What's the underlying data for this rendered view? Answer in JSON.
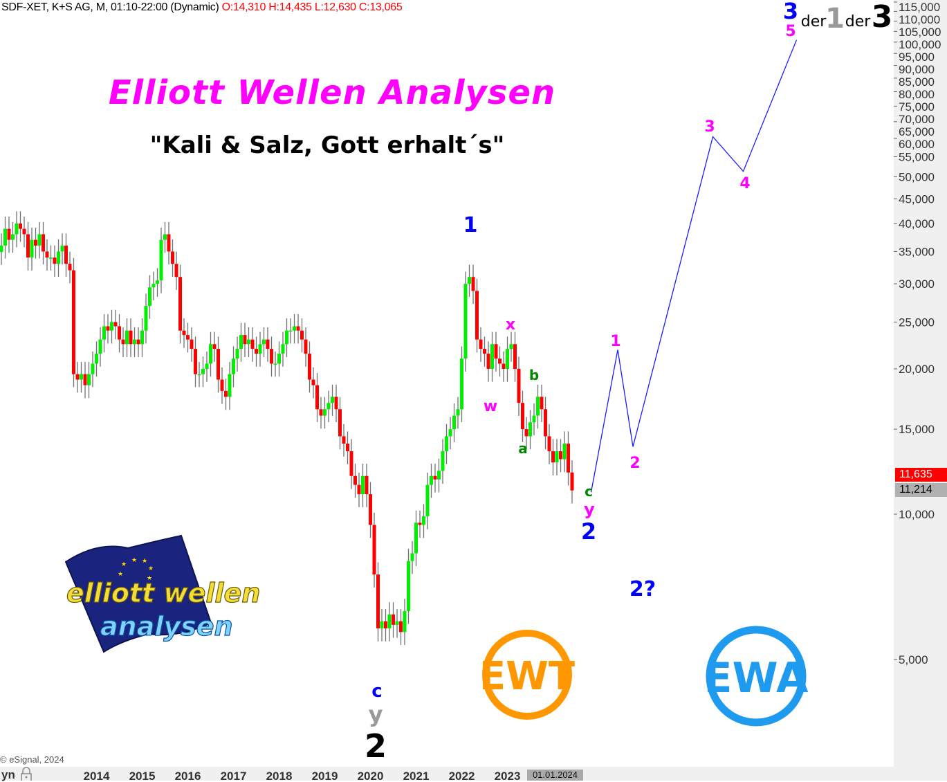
{
  "header": {
    "symbol_info": "SDF-XET, K+S AG, M, 01:10-22:00 (Dynamic)",
    "ohlc": "O:14,310 H:14,435 L:12,630 C:13,065"
  },
  "title": "Elliott Wellen Analysen",
  "subtitle": "\"Kali & Salz, Gott erhalt´s\"",
  "copyright": "© eSignal, 2024",
  "xaxis_left_label": "yn",
  "cursor_date_label": "01.01.2024",
  "price_labels": {
    "upper": "11,635",
    "current": "11,214"
  },
  "colors": {
    "up": "#00ee00",
    "down": "#ff0000",
    "wick": "#707070",
    "projection": "#1a1aff",
    "wave_blue": "#0000ff",
    "wave_magenta": "#ff00ff",
    "wave_green": "#008800"
  },
  "wave_labels": [
    {
      "text": "1",
      "color": "blue"
    },
    {
      "text": "x",
      "color": "magenta"
    },
    {
      "text": "w",
      "color": "magenta"
    },
    {
      "text": "b",
      "color": "green"
    },
    {
      "text": "a",
      "color": "green"
    },
    {
      "text": "c",
      "color": "green"
    },
    {
      "text": "y",
      "color": "magenta"
    },
    {
      "text": "2",
      "color": "blue"
    },
    {
      "text": "1",
      "color": "magenta"
    },
    {
      "text": "2",
      "color": "magenta"
    },
    {
      "text": "3",
      "color": "magenta"
    },
    {
      "text": "4",
      "color": "magenta"
    },
    {
      "text": "5",
      "color": "magenta"
    },
    {
      "text": "3",
      "color": "blue"
    },
    {
      "text": "der",
      "color": "black"
    },
    {
      "text": "1",
      "color": "gray"
    },
    {
      "text": "der",
      "color": "black"
    },
    {
      "text": "3",
      "color": "black"
    },
    {
      "text": "2?",
      "color": "blue"
    },
    {
      "text": "c",
      "color": "blue"
    },
    {
      "text": "y",
      "color": "gray"
    },
    {
      "text": "2",
      "color": "black"
    }
  ],
  "logos": {
    "ewa_main": [
      "elliott wellen",
      "analysen"
    ],
    "ewt": "EWT",
    "ewa": "EWA"
  },
  "icons": {
    "lock": "lock-icon"
  },
  "chart_data": {
    "type": "candlestick",
    "scale": "log",
    "start_month": "2011-12",
    "closes": [
      36,
      39,
      37,
      38,
      40,
      39,
      38,
      34,
      37,
      36,
      38,
      35,
      34,
      34,
      33,
      35,
      36,
      33,
      32,
      19.5,
      19,
      19.5,
      18.5,
      19.5,
      20.5,
      21.5,
      23,
      24.5,
      24,
      25,
      24.5,
      23,
      22.5,
      24,
      22.5,
      23,
      22.5,
      24,
      27,
      29.5,
      30,
      30.5,
      37,
      38,
      35,
      33,
      31,
      24,
      23.5,
      23,
      22,
      19.5,
      19.5,
      20,
      20.5,
      22.5,
      22,
      19,
      18,
      17.5,
      19.5,
      21,
      22,
      23.5,
      22.5,
      23,
      22,
      21.5,
      22.5,
      23,
      22,
      20.5,
      20.5,
      21.5,
      22.5,
      24,
      24,
      24.5,
      24,
      23,
      21.5,
      19,
      18.5,
      16.5,
      16,
      16.5,
      17,
      17.5,
      16.5,
      14.5,
      14,
      13.5,
      12,
      11.5,
      11,
      12,
      11,
      9.5,
      7.5,
      5.8,
      6,
      5.8,
      6.2,
      5.9,
      6,
      5.7,
      6.3,
      8,
      8.3,
      9.6,
      9.5,
      9.9,
      11.5,
      12,
      11.8,
      12.3,
      13.5,
      14.5,
      15,
      16,
      16.5,
      21,
      30,
      31,
      29,
      23,
      22,
      21.5,
      20,
      22.5,
      21,
      20.5,
      20,
      22,
      22.5,
      20,
      17,
      15,
      14.5,
      15.5,
      16,
      17.5,
      16.5,
      14.5,
      13.5,
      12.8,
      13.5,
      13,
      14,
      12.2,
      11.2
    ],
    "projection": [
      {
        "date": "2024-11",
        "value": 11.1
      },
      {
        "date": "2025-06",
        "value": 21.9
      },
      {
        "date": "2025-10",
        "value": 13.8
      },
      {
        "date": "2027-07",
        "value": 60.5
      },
      {
        "date": "2028-03",
        "value": 51.3
      },
      {
        "date": "2029-05",
        "value": 96
      }
    ],
    "yticks": [
      {
        "value": 5,
        "label": "5,000"
      },
      {
        "value": 10,
        "label": "10,000"
      },
      {
        "value": 15,
        "label": "15,000"
      },
      {
        "value": 20,
        "label": "20,000"
      },
      {
        "value": 25,
        "label": "25,000"
      },
      {
        "value": 30,
        "label": "30,000"
      },
      {
        "value": 35,
        "label": "35,000"
      },
      {
        "value": 40,
        "label": "40,000"
      },
      {
        "value": 45,
        "label": "45,000"
      },
      {
        "value": 50,
        "label": "50,000"
      },
      {
        "value": 55,
        "label": "55,000"
      },
      {
        "value": 60,
        "label": "60,000"
      },
      {
        "value": 65,
        "label": "65,000"
      },
      {
        "value": 70,
        "label": "70,000"
      },
      {
        "value": 75,
        "label": "75,000"
      },
      {
        "value": 80,
        "label": "80,000"
      },
      {
        "value": 85,
        "label": "85,000"
      },
      {
        "value": 90,
        "label": "90,000"
      },
      {
        "value": 95,
        "label": "95,000"
      },
      {
        "value": 100,
        "label": "100,000"
      },
      {
        "value": 105,
        "label": "105,000"
      },
      {
        "value": 110,
        "label": "110,000"
      },
      {
        "value": 115,
        "label": "115,000"
      }
    ],
    "xticks": [
      "2014",
      "2015",
      "2016",
      "2017",
      "2018",
      "2019",
      "2020",
      "2021",
      "2022",
      "2023"
    ],
    "grid": false
  }
}
